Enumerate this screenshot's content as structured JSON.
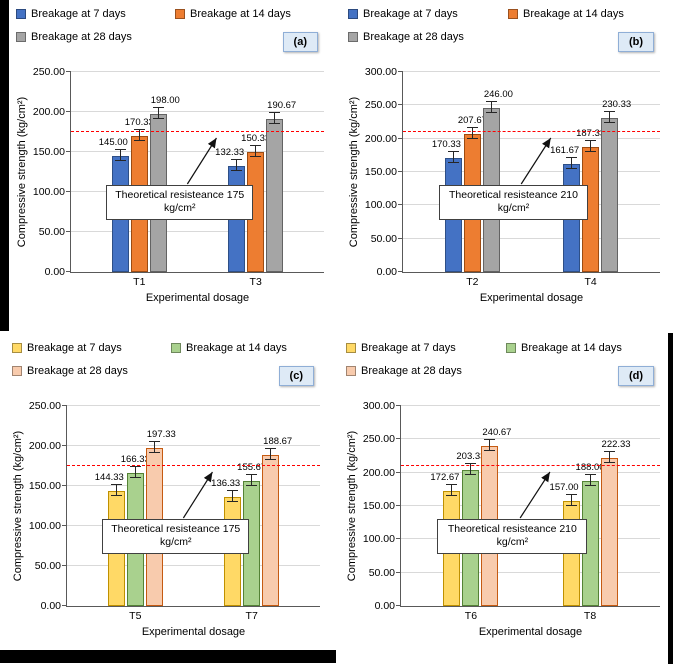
{
  "chart_data": [
    {
      "type": "bar",
      "panel_label": "(a)",
      "categories": [
        "T1",
        "T3"
      ],
      "series": [
        {
          "name": "Breakage at 7 days",
          "color": "#4472C4",
          "border": "#2E4F86",
          "values": [
            145.0,
            132.33
          ]
        },
        {
          "name": "Breakage at 14 days",
          "color": "#ED7D31",
          "border": "#9C4B12",
          "values": [
            170.33,
            150.33
          ]
        },
        {
          "name": "Breakage at 28 days",
          "color": "#A5A5A5",
          "border": "#636363",
          "values": [
            198.0,
            190.67
          ]
        }
      ],
      "ylabel": "Compressive strength (kg/cm²)",
      "xlabel": "Experimental dosage",
      "ylim": [
        0,
        250
      ],
      "ystep": 50,
      "grid": true,
      "legend_position": "top",
      "error_bars": true,
      "ref_line": {
        "value": 175,
        "label": "Theoretical resisteance 175 kg/cm²",
        "color": "#FF0000"
      }
    },
    {
      "type": "bar",
      "panel_label": "(b)",
      "categories": [
        "T2",
        "T4"
      ],
      "series": [
        {
          "name": "Breakage at 7 days",
          "color": "#4472C4",
          "border": "#2E4F86",
          "values": [
            170.33,
            161.67
          ]
        },
        {
          "name": "Breakage at 14 days",
          "color": "#ED7D31",
          "border": "#9C4B12",
          "values": [
            207.67,
            187.33
          ]
        },
        {
          "name": "Breakage at 28 days",
          "color": "#A5A5A5",
          "border": "#636363",
          "values": [
            246.0,
            230.33
          ]
        }
      ],
      "ylabel": "Compressive strength (kg/cm²)",
      "xlabel": "Experimental dosage",
      "ylim": [
        0,
        300
      ],
      "ystep": 50,
      "grid": true,
      "legend_position": "top",
      "error_bars": true,
      "ref_line": {
        "value": 210,
        "label": "Theoretical resisteance 210 kg/cm²",
        "color": "#FF0000"
      }
    },
    {
      "type": "bar",
      "panel_label": "(c)",
      "categories": [
        "T5",
        "T7"
      ],
      "series": [
        {
          "name": "Breakage at 7 days",
          "color": "#FFD966",
          "border": "#BF9000",
          "values": [
            144.33,
            136.33
          ]
        },
        {
          "name": "Breakage at 14 days",
          "color": "#A9D18E",
          "border": "#548235",
          "values": [
            166.33,
            155.67
          ]
        },
        {
          "name": "Breakage at 28 days",
          "color": "#F8CBAD",
          "border": "#C55A11",
          "values": [
            197.33,
            188.67
          ]
        }
      ],
      "ylabel": "Compressive strength (kg/cm²)",
      "xlabel": "Experimental dosage",
      "ylim": [
        0,
        250
      ],
      "ystep": 50,
      "grid": true,
      "legend_position": "top",
      "error_bars": true,
      "ref_line": {
        "value": 175,
        "label": "Theoretical resisteance 175 kg/cm²",
        "color": "#FF0000"
      }
    },
    {
      "type": "bar",
      "panel_label": "(d)",
      "categories": [
        "T6",
        "T8"
      ],
      "series": [
        {
          "name": "Breakage at 7 days",
          "color": "#FFD966",
          "border": "#BF9000",
          "values": [
            172.67,
            157.0
          ]
        },
        {
          "name": "Breakage at 14 days",
          "color": "#A9D18E",
          "border": "#548235",
          "values": [
            203.33,
            188.0
          ]
        },
        {
          "name": "Breakage at 28 days",
          "color": "#F8CBAD",
          "border": "#C55A11",
          "values": [
            240.67,
            222.33
          ]
        }
      ],
      "ylabel": "Compressive strength (kg/cm²)",
      "xlabel": "Experimental dosage",
      "ylim": [
        0,
        300
      ],
      "ystep": 50,
      "grid": true,
      "legend_position": "top",
      "error_bars": true,
      "ref_line": {
        "value": 210,
        "label": "Theoretical resisteance 210 kg/cm²",
        "color": "#FF0000"
      }
    }
  ]
}
